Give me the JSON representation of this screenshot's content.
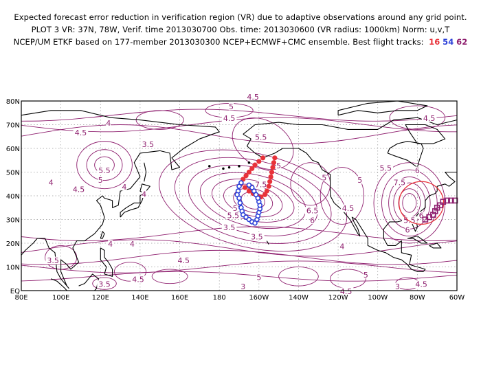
{
  "header": {
    "line1": "Expected forecast error reduction in verification region (VR) due to adaptive observations around any grid point.",
    "line2": "PLOT 3 VR: 37N, 78W, Verif. time 2013030700 Obs. time: 2013030600 (VR radius: 1000km) Norm: u,v,T",
    "line3": "NCEP/UM ETKF based on 177-member 2013030300 NCEP+ECMWF+CMC ensemble. Best flight tracks:",
    "tracks": [
      "16",
      "54",
      "62"
    ]
  },
  "map": {
    "lon_labels": [
      "80E",
      "100E",
      "120E",
      "140E",
      "160E",
      "180",
      "160W",
      "140W",
      "120W",
      "100W",
      "80W",
      "60W"
    ],
    "lat_labels": [
      "EQ",
      "10N",
      "20N",
      "30N",
      "40N",
      "50N",
      "60N",
      "70N",
      "80N"
    ],
    "verification_region": {
      "lat": 37,
      "lon": -78,
      "radius_km": 1000
    },
    "contour_labels": [
      {
        "text": "4.5",
        "lon": -163,
        "lat": 81
      },
      {
        "text": "5",
        "lon": -174,
        "lat": 77
      },
      {
        "text": "4.5",
        "lon": -175,
        "lat": 72
      },
      {
        "text": "4",
        "lon": 124,
        "lat": 70
      },
      {
        "text": "4.5",
        "lon": 110,
        "lat": 66
      },
      {
        "text": "3.5",
        "lon": 144,
        "lat": 61
      },
      {
        "text": "5.5",
        "lon": -159,
        "lat": 64
      },
      {
        "text": "5.5",
        "lon": 122,
        "lat": 50
      },
      {
        "text": "5",
        "lon": 120,
        "lat": 46
      },
      {
        "text": "4.5",
        "lon": 109,
        "lat": 42
      },
      {
        "text": "4",
        "lon": 132,
        "lat": 43
      },
      {
        "text": "4",
        "lon": 95,
        "lat": 45
      },
      {
        "text": "4",
        "lon": 142,
        "lat": 40
      },
      {
        "text": "5",
        "lon": -150,
        "lat": 52
      },
      {
        "text": "7.5",
        "lon": -159,
        "lat": 44
      },
      {
        "text": "7",
        "lon": -162,
        "lat": 40
      },
      {
        "text": "6.5",
        "lon": -133,
        "lat": 33
      },
      {
        "text": "6",
        "lon": -133,
        "lat": 29
      },
      {
        "text": "5",
        "lon": -127,
        "lat": 47
      },
      {
        "text": "5.5",
        "lon": -173,
        "lat": 31
      },
      {
        "text": "5",
        "lon": -172,
        "lat": 34
      },
      {
        "text": "3.5",
        "lon": -175,
        "lat": 26
      },
      {
        "text": "3.5",
        "lon": -161,
        "lat": 22
      },
      {
        "text": "4.5",
        "lon": -115,
        "lat": 34
      },
      {
        "text": "5",
        "lon": -109,
        "lat": 46
      },
      {
        "text": "5.5",
        "lon": -96,
        "lat": 51
      },
      {
        "text": "7.5",
        "lon": -89,
        "lat": 45
      },
      {
        "text": "6",
        "lon": -80,
        "lat": 50
      },
      {
        "text": "6",
        "lon": -78,
        "lat": 31
      },
      {
        "text": "5.5",
        "lon": -84,
        "lat": 29
      },
      {
        "text": "6",
        "lon": -85,
        "lat": 25
      },
      {
        "text": "4.5",
        "lon": -74,
        "lat": 72
      },
      {
        "text": "4",
        "lon": 125,
        "lat": 19
      },
      {
        "text": "4",
        "lon": 136,
        "lat": 19
      },
      {
        "text": "3.5",
        "lon": 96,
        "lat": 12
      },
      {
        "text": "4.5",
        "lon": 162,
        "lat": 12
      },
      {
        "text": "4.5",
        "lon": 139,
        "lat": 4
      },
      {
        "text": "3.5",
        "lon": 122,
        "lat": 2
      },
      {
        "text": "4",
        "lon": -118,
        "lat": 18
      },
      {
        "text": "4.5",
        "lon": -116,
        "lat": -1
      },
      {
        "text": "5",
        "lon": -106,
        "lat": 6
      },
      {
        "text": "4.5",
        "lon": -78,
        "lat": 2
      },
      {
        "text": "3",
        "lon": -90,
        "lat": 1
      },
      {
        "text": "5",
        "lon": -160,
        "lat": 5
      },
      {
        "text": "3",
        "lon": -168,
        "lat": 1
      }
    ]
  },
  "flight_tracks": {
    "track16": {
      "color": "#e8323a",
      "symbol": "circle",
      "points": [
        [
          -158,
          56
        ],
        [
          -160,
          54.5
        ],
        [
          -162,
          53
        ],
        [
          -163.5,
          51.5
        ],
        [
          -165,
          50
        ],
        [
          -166.5,
          48.5
        ],
        [
          -168,
          47
        ],
        [
          -169,
          45
        ],
        [
          -167,
          43.5
        ],
        [
          -165,
          42
        ],
        [
          -163,
          41
        ],
        [
          -161,
          40
        ],
        [
          -159,
          39.5
        ],
        [
          -157,
          40.5
        ],
        [
          -156,
          42
        ],
        [
          -155,
          44
        ],
        [
          -154.5,
          46
        ],
        [
          -154,
          48
        ],
        [
          -153.5,
          50
        ],
        [
          -153,
          52
        ],
        [
          -152.5,
          54
        ],
        [
          -152,
          56
        ]
      ]
    },
    "track54": {
      "color": "#2a3fd8",
      "symbol": "circle",
      "points": [
        [
          -169,
          45.5
        ],
        [
          -170,
          44
        ],
        [
          -170.5,
          42
        ],
        [
          -171,
          40.5
        ],
        [
          -170,
          39
        ],
        [
          -169.5,
          37
        ],
        [
          -169,
          35
        ],
        [
          -168.5,
          33.5
        ],
        [
          -168,
          32
        ],
        [
          -166.5,
          31
        ],
        [
          -165,
          30
        ],
        [
          -163.5,
          29
        ],
        [
          -162,
          28.5
        ],
        [
          -161,
          30
        ],
        [
          -160.5,
          31.5
        ],
        [
          -160,
          33
        ],
        [
          -159.5,
          34.5
        ],
        [
          -159.5,
          36
        ],
        [
          -160,
          37.5
        ],
        [
          -160.5,
          39
        ],
        [
          -161.5,
          40.5
        ],
        [
          -162.5,
          42
        ],
        [
          -163.5,
          43.5
        ],
        [
          -165,
          44.5
        ]
      ]
    },
    "track62": {
      "color": "#8e1e6e",
      "symbol": "square",
      "points": [
        [
          -76,
          30
        ],
        [
          -74,
          31
        ],
        [
          -72,
          32
        ],
        [
          -71,
          33.5
        ],
        [
          -70,
          35
        ],
        [
          -68.5,
          36
        ],
        [
          -67,
          37.5
        ],
        [
          -65,
          38
        ],
        [
          -63,
          38
        ],
        [
          -61,
          38
        ]
      ]
    }
  },
  "colors": {
    "contour": "#8e1e6e",
    "coast": "#000000",
    "grid": "#888888"
  }
}
